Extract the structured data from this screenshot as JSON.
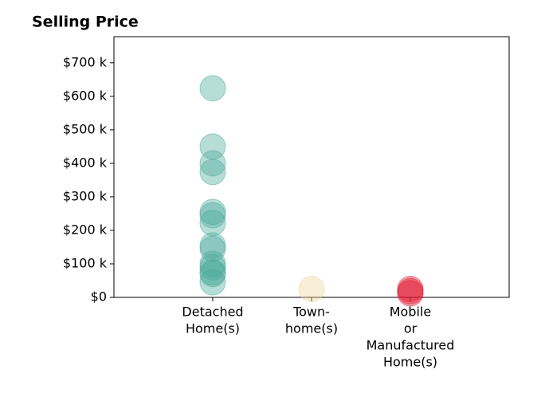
{
  "chart_data": {
    "type": "strip",
    "title": "Selling Price",
    "categories": [
      [
        "Detached",
        "Home(s)"
      ],
      [
        "Town-",
        "home(s)"
      ],
      [
        "Mobile",
        "or",
        "Manufactured",
        "Home(s)"
      ]
    ],
    "values": [
      [
        624000,
        450000,
        400000,
        374000,
        255000,
        245000,
        222000,
        155000,
        145000,
        100000,
        90000,
        75000,
        70000,
        45000
      ],
      [
        25000
      ],
      [
        25000,
        18000,
        12000
      ]
    ],
    "colors": [
      "#4aaa9c",
      "#f0d49a",
      "#e0182f"
    ],
    "ylim": [
      0,
      778000
    ],
    "yticks": [
      {
        "value": 0,
        "label": "$0"
      },
      {
        "value": 100000,
        "label": "$100 k"
      },
      {
        "value": 200000,
        "label": "$200 k"
      },
      {
        "value": 300000,
        "label": "$300 k"
      },
      {
        "value": 400000,
        "label": "$400 k"
      },
      {
        "value": 500000,
        "label": "$500 k"
      },
      {
        "value": 600000,
        "label": "$600 k"
      },
      {
        "value": 700000,
        "label": "$700 k"
      }
    ]
  }
}
